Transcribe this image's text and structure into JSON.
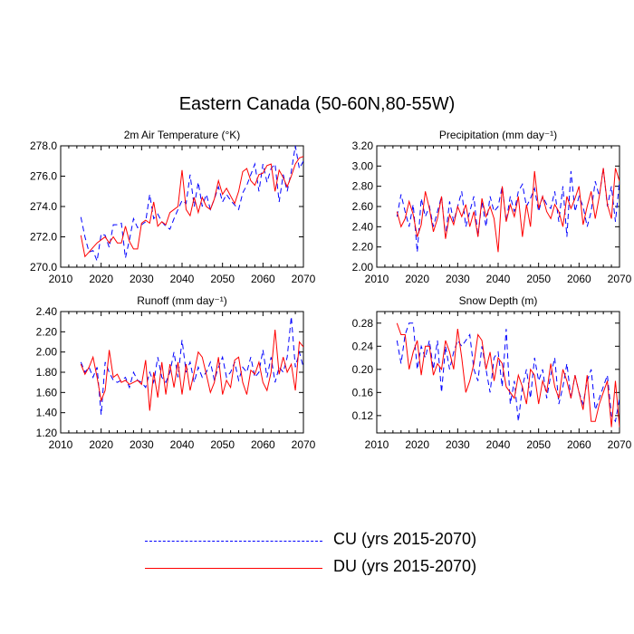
{
  "title": "Eastern Canada (50-60N,80-55W)",
  "legend": [
    {
      "name": "CU (yrs 2015-2070)",
      "color": "#0000ff",
      "style": "dashed"
    },
    {
      "name": "DU (yrs 2015-2070)",
      "color": "#ff0000",
      "style": "solid"
    }
  ],
  "chart_data": [
    {
      "type": "line",
      "title": "2m Air Temperature (°K)",
      "xlim": [
        2010,
        2070
      ],
      "ylim": [
        270.0,
        278.0
      ],
      "xticks": [
        "2010",
        "2020",
        "2030",
        "2040",
        "2050",
        "2060",
        "2070"
      ],
      "yticks": [
        "270.0",
        "272.0",
        "274.0",
        "276.0",
        "278.0"
      ],
      "x_start": 2015,
      "series": [
        {
          "name": "CU (yrs 2015-2070)",
          "values": [
            273.3,
            272.0,
            271.0,
            271.1,
            270.4,
            272.2,
            272.1,
            271.3,
            272.8,
            272.8,
            272.9,
            270.6,
            271.8,
            273.2,
            272.6,
            272.8,
            273.0,
            274.8,
            273.2,
            273.5,
            273.0,
            272.7,
            272.5,
            273.2,
            273.8,
            274.4,
            274.2,
            276.1,
            274.0,
            275.6,
            274.0,
            274.8,
            273.8,
            274.5,
            275.3,
            274.3,
            274.8,
            274.4,
            274.1,
            273.8,
            274.9,
            275.4,
            276.1,
            276.8,
            275.0,
            276.8,
            275.6,
            276.5,
            276.8,
            274.3,
            276.1,
            275.0,
            276.3,
            278.0,
            276.5,
            277.0
          ]
        },
        {
          "name": "DU (yrs 2015-2070)",
          "values": [
            272.1,
            270.7,
            271.0,
            271.3,
            271.6,
            271.8,
            272.0,
            271.6,
            272.0,
            271.6,
            271.6,
            272.7,
            271.7,
            271.2,
            271.2,
            272.9,
            273.1,
            272.9,
            274.3,
            272.7,
            273.0,
            272.8,
            273.6,
            273.8,
            274.0,
            276.4,
            273.8,
            273.4,
            274.6,
            273.6,
            274.6,
            274.0,
            273.8,
            274.5,
            275.7,
            274.8,
            275.2,
            274.7,
            274.2,
            275.0,
            276.3,
            276.5,
            275.7,
            275.4,
            276.1,
            276.2,
            276.7,
            276.8,
            275.0,
            276.4,
            275.9,
            275.3,
            276.0,
            276.8,
            277.2,
            277.3
          ]
        }
      ]
    },
    {
      "type": "line",
      "title": "Precipitation (mm day⁻¹)",
      "xlim": [
        2010,
        2070
      ],
      "ylim": [
        2.0,
        3.2
      ],
      "xticks": [
        "2010",
        "2020",
        "2030",
        "2040",
        "2050",
        "2060",
        "2070"
      ],
      "yticks": [
        "2.00",
        "2.20",
        "2.40",
        "2.60",
        "2.80",
        "3.00",
        "3.20"
      ],
      "x_start": 2015,
      "series": [
        {
          "name": "CU (yrs 2015-2070)",
          "values": [
            2.5,
            2.72,
            2.55,
            2.4,
            2.62,
            2.15,
            2.68,
            2.5,
            2.6,
            2.4,
            2.55,
            2.7,
            2.3,
            2.65,
            2.45,
            2.6,
            2.75,
            2.4,
            2.55,
            2.7,
            2.3,
            2.65,
            2.4,
            2.7,
            2.55,
            2.6,
            2.8,
            2.45,
            2.7,
            2.55,
            2.75,
            2.82,
            2.6,
            2.68,
            2.78,
            2.55,
            2.7,
            2.62,
            2.58,
            2.75,
            2.45,
            2.8,
            2.3,
            2.95,
            2.55,
            2.7,
            2.6,
            2.4,
            2.55,
            2.85,
            2.7,
            2.98,
            2.6,
            2.8,
            2.45,
            2.85
          ]
        },
        {
          "name": "DU (yrs 2015-2070)",
          "values": [
            2.55,
            2.4,
            2.48,
            2.65,
            2.52,
            2.3,
            2.42,
            2.75,
            2.58,
            2.35,
            2.48,
            2.7,
            2.28,
            2.52,
            2.42,
            2.6,
            2.5,
            2.62,
            2.4,
            2.55,
            2.3,
            2.68,
            2.5,
            2.6,
            2.48,
            2.15,
            2.8,
            2.45,
            2.62,
            2.5,
            2.7,
            2.3,
            2.62,
            2.4,
            2.95,
            2.58,
            2.7,
            2.55,
            2.48,
            2.62,
            2.55,
            2.4,
            2.7,
            2.58,
            2.68,
            2.8,
            2.42,
            2.6,
            2.75,
            2.48,
            2.7,
            2.98,
            2.62,
            2.48,
            2.98,
            2.85
          ]
        }
      ]
    },
    {
      "type": "line",
      "title": "Runoff (mm day⁻¹)",
      "xlim": [
        2010,
        2070
      ],
      "ylim": [
        1.2,
        2.4
      ],
      "xticks": [
        "2010",
        "2020",
        "2030",
        "2040",
        "2050",
        "2060",
        "2070"
      ],
      "yticks": [
        "1.20",
        "1.40",
        "1.60",
        "1.80",
        "2.00",
        "2.20",
        "2.40"
      ],
      "x_start": 2015,
      "series": [
        {
          "name": "CU (yrs 2015-2070)",
          "values": [
            1.9,
            1.8,
            1.85,
            1.75,
            1.85,
            1.38,
            1.9,
            1.8,
            1.72,
            1.7,
            1.72,
            1.75,
            1.65,
            1.8,
            1.72,
            1.7,
            1.65,
            1.8,
            1.7,
            1.95,
            1.75,
            1.7,
            1.8,
            2.0,
            1.75,
            2.12,
            1.8,
            1.9,
            1.7,
            1.85,
            1.75,
            1.8,
            1.9,
            1.72,
            1.85,
            1.95,
            1.75,
            1.8,
            1.9,
            1.72,
            1.85,
            1.8,
            1.95,
            1.75,
            1.8,
            2.02,
            1.75,
            1.95,
            1.7,
            1.85,
            1.8,
            1.95,
            2.35,
            1.85,
            2.0,
            1.85
          ]
        },
        {
          "name": "DU (yrs 2015-2070)",
          "values": [
            1.88,
            1.78,
            1.85,
            1.95,
            1.75,
            1.52,
            1.62,
            2.02,
            1.75,
            1.78,
            1.7,
            1.72,
            1.68,
            1.7,
            1.72,
            1.68,
            1.92,
            1.42,
            1.8,
            1.55,
            1.9,
            1.58,
            1.88,
            1.65,
            1.9,
            1.58,
            1.88,
            1.62,
            1.8,
            2.0,
            1.95,
            1.78,
            1.6,
            1.7,
            1.95,
            1.58,
            1.72,
            1.65,
            1.92,
            1.95,
            1.7,
            1.58,
            1.82,
            1.78,
            1.9,
            1.7,
            1.62,
            1.8,
            2.22,
            1.78,
            1.95,
            1.8,
            1.88,
            1.62,
            2.1,
            2.05
          ]
        }
      ]
    },
    {
      "type": "line",
      "title": "Snow Depth (m)",
      "xlim": [
        2010,
        2070
      ],
      "ylim": [
        0.09,
        0.3
      ],
      "xticks": [
        "2010",
        "2020",
        "2030",
        "2040",
        "2050",
        "2060",
        "2070"
      ],
      "yticks": [
        "0.12",
        "0.16",
        "0.20",
        "0.24",
        "0.28"
      ],
      "x_start": 2015,
      "series": [
        {
          "name": "CU (yrs 2015-2070)",
          "values": [
            0.25,
            0.21,
            0.26,
            0.28,
            0.28,
            0.2,
            0.24,
            0.22,
            0.25,
            0.2,
            0.25,
            0.16,
            0.24,
            0.2,
            0.23,
            0.25,
            0.24,
            0.25,
            0.26,
            0.2,
            0.18,
            0.24,
            0.2,
            0.16,
            0.22,
            0.23,
            0.17,
            0.27,
            0.14,
            0.18,
            0.11,
            0.17,
            0.2,
            0.15,
            0.22,
            0.18,
            0.2,
            0.15,
            0.19,
            0.22,
            0.14,
            0.17,
            0.21,
            0.15,
            0.19,
            0.16,
            0.14,
            0.18,
            0.2,
            0.13,
            0.15,
            0.17,
            0.19,
            0.12,
            0.11,
            0.15
          ]
        },
        {
          "name": "DU (yrs 2015-2070)",
          "values": [
            0.28,
            0.26,
            0.26,
            0.2,
            0.23,
            0.25,
            0.19,
            0.24,
            0.24,
            0.19,
            0.21,
            0.2,
            0.25,
            0.23,
            0.2,
            0.27,
            0.22,
            0.16,
            0.18,
            0.21,
            0.26,
            0.25,
            0.2,
            0.23,
            0.18,
            0.22,
            0.21,
            0.17,
            0.16,
            0.15,
            0.19,
            0.17,
            0.14,
            0.2,
            0.19,
            0.14,
            0.18,
            0.16,
            0.21,
            0.17,
            0.15,
            0.2,
            0.18,
            0.15,
            0.19,
            0.16,
            0.13,
            0.19,
            0.11,
            0.11,
            0.14,
            0.16,
            0.18,
            0.1,
            0.18,
            0.1
          ]
        }
      ]
    }
  ]
}
